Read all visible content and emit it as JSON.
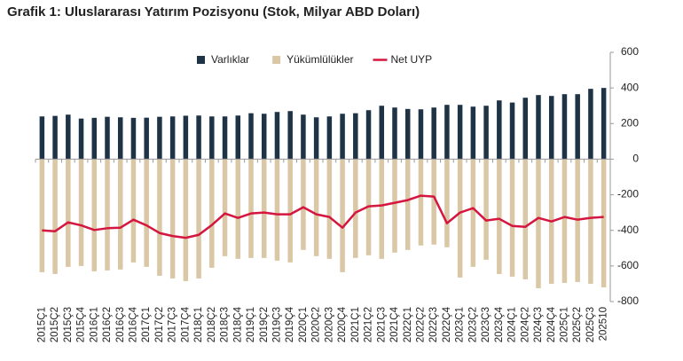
{
  "chart_data": {
    "type": "bar_line",
    "title": "Grafik 1: Uluslararası Yatırım Pozisyonu (Stok, Milyar ABD Doları)",
    "categories": [
      "2015Ç1",
      "2015Ç2",
      "2015Ç3",
      "2015Ç4",
      "2016Ç1",
      "2016Ç2",
      "2016Ç3",
      "2016Ç4",
      "2017Ç1",
      "2017Ç2",
      "2017Ç3",
      "2017Ç4",
      "2018Ç1",
      "2018Ç2",
      "2018Ç3",
      "2018Ç4",
      "2019Ç1",
      "2019Ç2",
      "2019Ç3",
      "2019Ç4",
      "2020Ç1",
      "2020Ç2",
      "2020Ç3",
      "2020Ç4",
      "2021Ç1",
      "2021Ç2",
      "2021Ç3",
      "2021Ç4",
      "2022Ç1",
      "2022Ç2",
      "2022Ç3",
      "2022Ç4",
      "2023Ç1",
      "2023Ç2",
      "2023Ç3",
      "2023Ç4",
      "2024Ç1",
      "2024Ç2",
      "2024Ç3",
      "2024Ç4",
      "2025Ç1",
      "2025Ç2",
      "2025Ç3",
      "202510"
    ],
    "series": [
      {
        "name": "Varlıklar",
        "kind": "bar",
        "color": "#1f3347",
        "values": [
          240,
          243,
          250,
          228,
          232,
          238,
          235,
          232,
          233,
          238,
          240,
          244,
          245,
          240,
          240,
          245,
          258,
          255,
          265,
          270,
          250,
          235,
          240,
          255,
          258,
          275,
          300,
          290,
          282,
          280,
          290,
          305,
          305,
          295,
          300,
          330,
          318,
          345,
          360,
          355,
          365,
          365,
          395,
          400
        ]
      },
      {
        "name": "Yükümlülükler",
        "kind": "bar",
        "color": "#d9c7a5",
        "values": [
          -635,
          -645,
          -605,
          -600,
          -630,
          -625,
          -620,
          -580,
          -605,
          -655,
          -670,
          -685,
          -670,
          -610,
          -545,
          -560,
          -555,
          -555,
          -570,
          -580,
          -510,
          -545,
          -560,
          -635,
          -555,
          -540,
          -560,
          -525,
          -510,
          -485,
          -480,
          -495,
          -665,
          -605,
          -565,
          -645,
          -660,
          -675,
          -725,
          -700,
          -695,
          -690,
          -700,
          -720
        ]
      },
      {
        "name": "Net UYP",
        "kind": "line",
        "color": "#d5163f",
        "values": [
          -400,
          -405,
          -355,
          -372,
          -398,
          -388,
          -385,
          -340,
          -372,
          -415,
          -432,
          -442,
          -425,
          -370,
          -305,
          -330,
          -305,
          -300,
          -310,
          -310,
          -270,
          -310,
          -325,
          -385,
          -300,
          -265,
          -260,
          -245,
          -230,
          -205,
          -210,
          -360,
          -300,
          -275,
          -345,
          -335,
          -375,
          -380,
          -330,
          -350,
          -325,
          -340,
          -330,
          -325
        ]
      }
    ],
    "ylim": [
      -800,
      600
    ],
    "yticks": [
      -800,
      -600,
      -400,
      -200,
      0,
      200,
      400,
      600
    ]
  }
}
